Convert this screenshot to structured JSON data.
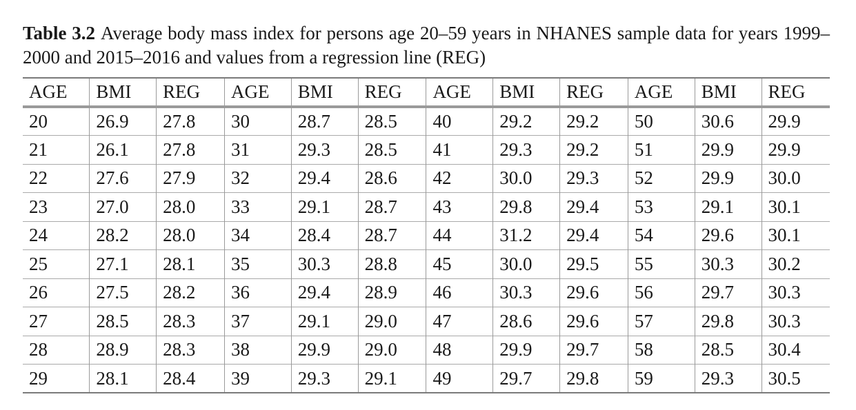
{
  "caption": {
    "label": "Table 3.2",
    "text": "Average body mass index for persons age 20–59 years in NHANES sample data for years 1999–2000 and 2015–2016 and values from a regression line (REG)"
  },
  "table": {
    "headers": [
      "AGE",
      "BMI",
      "REG",
      "AGE",
      "BMI",
      "REG",
      "AGE",
      "BMI",
      "REG",
      "AGE",
      "BMI",
      "REG"
    ],
    "rows": [
      [
        "20",
        "26.9",
        "27.8",
        "30",
        "28.7",
        "28.5",
        "40",
        "29.2",
        "29.2",
        "50",
        "30.6",
        "29.9"
      ],
      [
        "21",
        "26.1",
        "27.8",
        "31",
        "29.3",
        "28.5",
        "41",
        "29.3",
        "29.2",
        "51",
        "29.9",
        "29.9"
      ],
      [
        "22",
        "27.6",
        "27.9",
        "32",
        "29.4",
        "28.6",
        "42",
        "30.0",
        "29.3",
        "52",
        "29.9",
        "30.0"
      ],
      [
        "23",
        "27.0",
        "28.0",
        "33",
        "29.1",
        "28.7",
        "43",
        "29.8",
        "29.4",
        "53",
        "29.1",
        "30.1"
      ],
      [
        "24",
        "28.2",
        "28.0",
        "34",
        "28.4",
        "28.7",
        "44",
        "31.2",
        "29.4",
        "54",
        "29.6",
        "30.1"
      ],
      [
        "25",
        "27.1",
        "28.1",
        "35",
        "30.3",
        "28.8",
        "45",
        "30.0",
        "29.5",
        "55",
        "30.3",
        "30.2"
      ],
      [
        "26",
        "27.5",
        "28.2",
        "36",
        "29.4",
        "28.9",
        "46",
        "30.3",
        "29.6",
        "56",
        "29.7",
        "30.3"
      ],
      [
        "27",
        "28.5",
        "28.3",
        "37",
        "29.1",
        "29.0",
        "47",
        "28.6",
        "29.6",
        "57",
        "29.8",
        "30.3"
      ],
      [
        "28",
        "28.9",
        "28.3",
        "38",
        "29.9",
        "29.0",
        "48",
        "29.9",
        "29.7",
        "58",
        "28.5",
        "30.4"
      ],
      [
        "29",
        "28.1",
        "28.4",
        "39",
        "29.3",
        "29.1",
        "49",
        "29.7",
        "29.8",
        "59",
        "29.3",
        "30.5"
      ]
    ]
  }
}
